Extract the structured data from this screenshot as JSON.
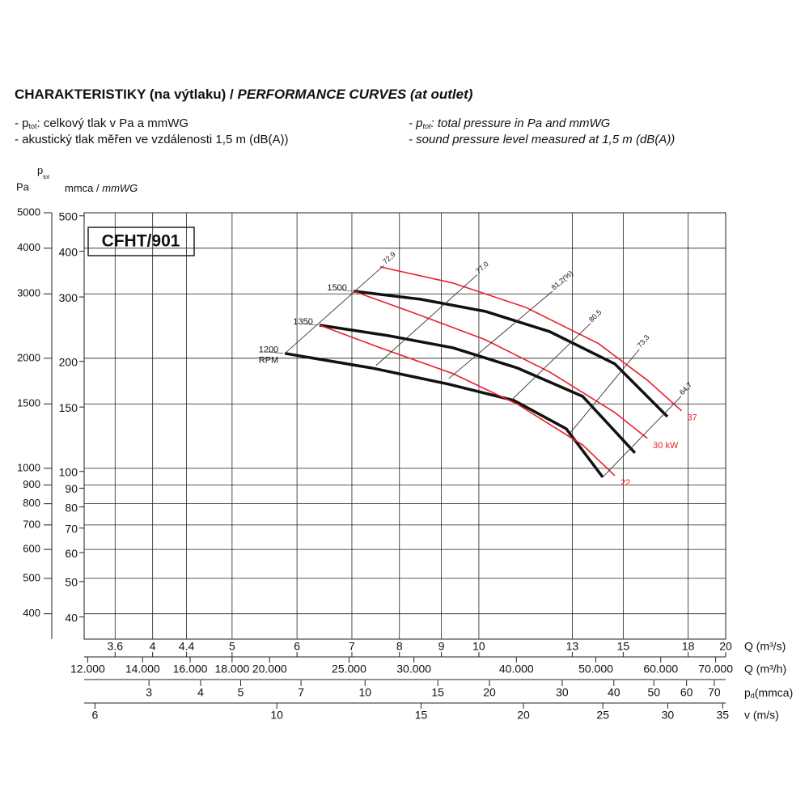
{
  "header": {
    "title": "CHARAKTERISTIKY (na výtlaku) / ",
    "title_en": "PERFORMANCE CURVES (at outlet)",
    "note1": {
      "prefix": "- p",
      "sub": "tot",
      "text": ": celkový tlak v Pa a mmWG"
    },
    "note2": "- akustický tlak měřen ve vzdálenosti 1,5 m (dB(A))",
    "note1_en": {
      "prefix": "- p",
      "sub": "tot",
      "text": ": total pressure in Pa and mmWG"
    },
    "note2_en": "- sound pressure level measured at 1,5 m (dB(A))"
  },
  "chart_data": {
    "type": "line",
    "model": "CFHT/901",
    "y_label": "Pa",
    "y2_label": {
      "p": "p",
      "sub": "tot",
      "unit": "mmca / ",
      "unit_en": "mmWG"
    },
    "rpm_unit": "RPM",
    "xscale": "log",
    "yscale": "log",
    "grid": true,
    "x_label": "Q (m³/s)",
    "xlim": [
      3.3,
      20
    ],
    "xticks": [
      3.6,
      4,
      4.4,
      5,
      6,
      7,
      8,
      9,
      10,
      13,
      15,
      18,
      20
    ],
    "ylim": [
      341,
      5000
    ],
    "yticks": [
      400,
      500,
      600,
      700,
      800,
      900,
      1000,
      1500,
      2000,
      3000,
      4000,
      5000
    ],
    "y2lim": [
      34.8,
      509.7
    ],
    "y2ticks": [
      40,
      50,
      60,
      70,
      80,
      90,
      100,
      150,
      200,
      300,
      400,
      500
    ],
    "extra_x_axes": [
      {
        "label": "Q (m³/h)",
        "lim": [
          11880,
          72000
        ],
        "ticks": [
          {
            "value": 12000,
            "label": "12.000"
          },
          {
            "value": 14000,
            "label": "14.000"
          },
          {
            "value": 16000,
            "label": "16.000"
          },
          {
            "value": 18000,
            "label": "18.000"
          },
          {
            "value": 20000,
            "label": "20.000"
          },
          {
            "value": 25000,
            "label": "25.000"
          },
          {
            "value": 30000,
            "label": "30.000"
          },
          {
            "value": 40000,
            "label": "40.000"
          },
          {
            "value": 50000,
            "label": "50.000"
          },
          {
            "value": 60000,
            "label": "60.000"
          },
          {
            "value": 70000,
            "label": "70.000"
          }
        ]
      },
      {
        "label": "(mmca)",
        "label_p": "p",
        "label_sub": "d",
        "lim": [
          2.09,
          74.6
        ],
        "ticks": [
          3,
          4,
          5,
          7,
          10,
          15,
          20,
          30,
          40,
          50,
          60,
          70
        ]
      },
      {
        "label": "v (m/s)",
        "lim": [
          5.82,
          35.3
        ],
        "ticks": [
          6,
          10,
          15,
          20,
          25,
          30,
          35
        ]
      }
    ],
    "series": [
      {
        "name": "1200",
        "color": "#111111",
        "x": [
          5.8,
          7.41,
          9.19,
          11.03,
          12.78,
          14.16
        ],
        "values": [
          2062,
          1880,
          1698,
          1534,
          1283,
          946
        ]
      },
      {
        "name": "1350",
        "color": "#111111",
        "x": [
          6.39,
          7.75,
          9.3,
          11.15,
          13.38,
          15.5
        ],
        "values": [
          2464,
          2306,
          2136,
          1880,
          1574,
          1102
        ]
      },
      {
        "name": "1500",
        "color": "#111111",
        "x": [
          7.03,
          8.49,
          10.18,
          12.2,
          14.65,
          16.98
        ],
        "values": [
          3052,
          2900,
          2687,
          2365,
          1930,
          1385
        ]
      },
      {
        "name": "22",
        "color": "#e8202a",
        "x": [
          6.39,
          7.58,
          9.3,
          11.15,
          13.38,
          14.65
        ],
        "values": [
          2464,
          2136,
          1815,
          1496,
          1159,
          955
        ]
      },
      {
        "name": "30 kW",
        "color": "#e8202a",
        "x": [
          7.03,
          8.49,
          10.18,
          12.2,
          14.65,
          16.05
        ],
        "values": [
          3052,
          2620,
          2248,
          1834,
          1421,
          1207
        ]
      },
      {
        "name": "37",
        "color": "#e8202a",
        "x": [
          7.58,
          9.3,
          11.41,
          14.0,
          16.05,
          17.67
        ],
        "values": [
          3556,
          3211,
          2755,
          2192,
          1742,
          1436
        ]
      },
      {
        "name": "72,9",
        "color": "#333333",
        "x": [
          5.8,
          7.66
        ],
        "values": [
          2062,
          3592
        ]
      },
      {
        "name": "77,0",
        "color": "#333333",
        "x": [
          7.49,
          9.95
        ],
        "values": [
          1910,
          3380
        ]
      },
      {
        "name": "81,2(%)",
        "color": "#333333",
        "x": [
          9.19,
          12.3
        ],
        "values": [
          1760,
          3052
        ]
      },
      {
        "name": "80,5",
        "color": "#333333",
        "x": [
          10.95,
          13.68
        ],
        "values": [
          1534,
          2489
        ]
      },
      {
        "name": "73,3",
        "color": "#333333",
        "x": [
          12.93,
          15.69
        ],
        "values": [
          1251,
          2115
        ]
      },
      {
        "name": "64,7",
        "color": "#333333",
        "x": [
          14.16,
          17.65
        ],
        "values": [
          946,
          1574
        ]
      }
    ]
  }
}
